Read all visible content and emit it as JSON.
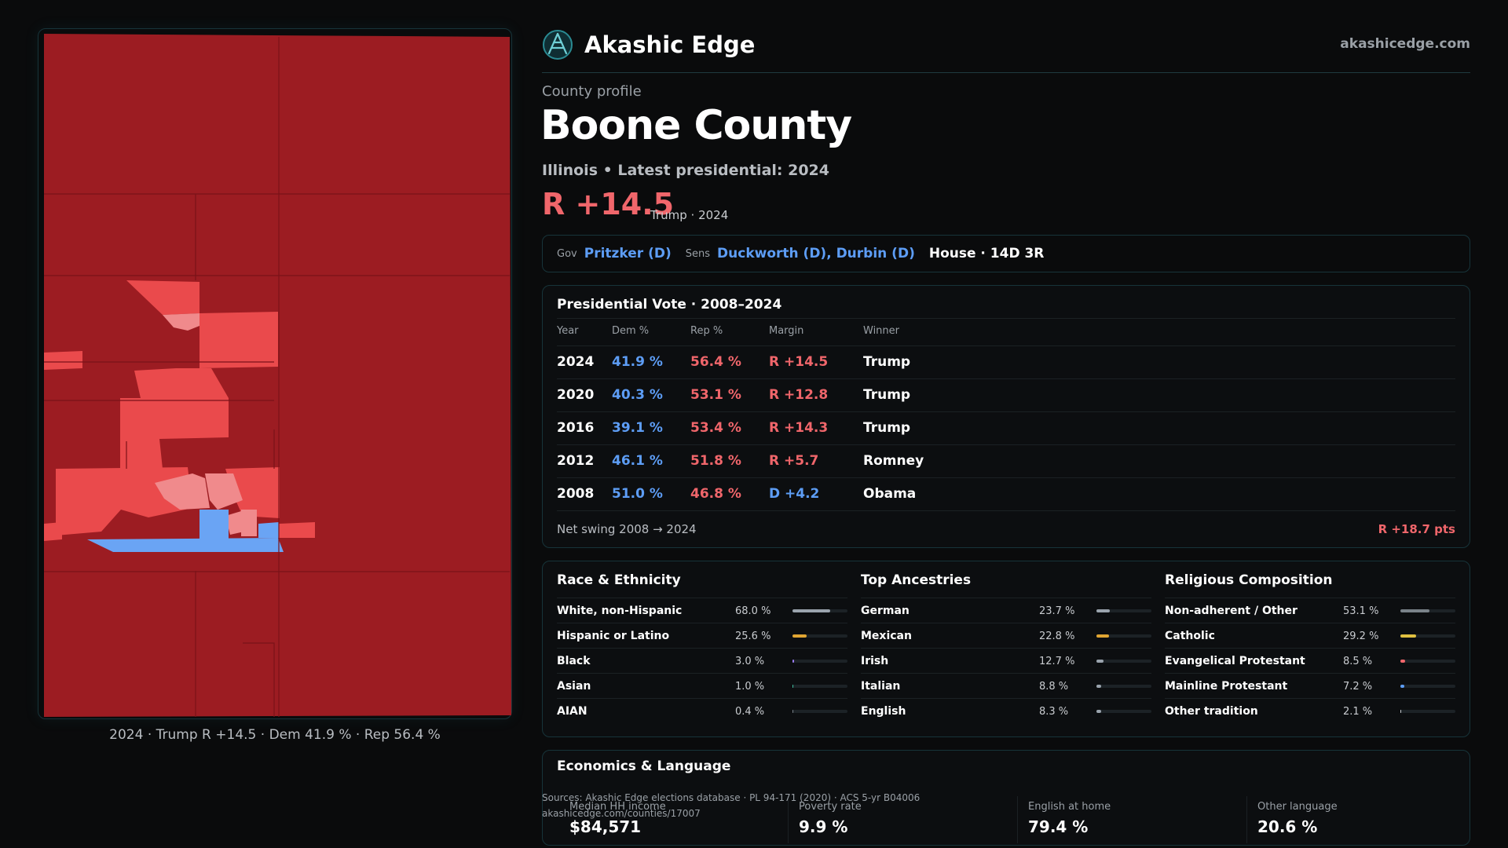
{
  "brand": {
    "name": "Akashic Edge",
    "url": "akashicedge.com",
    "logo_icon": "akashic-edge-logo-icon"
  },
  "profile": {
    "label": "County profile",
    "county": "Boone County",
    "subtitle": "Illinois • Latest presidential: 2024",
    "margin": "R +14.5",
    "margin_sub": "Trump · 2024"
  },
  "officials": {
    "gov_label": "Gov",
    "gov": "Pritzker (D)",
    "sens_label": "Sens",
    "sens": "Duckworth (D), Durbin (D)",
    "house": "House · 14D 3R"
  },
  "vote_history": {
    "title": "Presidential Vote · 2008–2024",
    "headers": {
      "year": "Year",
      "dem": "Dem %",
      "rep": "Rep %",
      "margin": "Margin",
      "winner": "Winner"
    },
    "rows": [
      {
        "year": "2024",
        "dem": "41.9 %",
        "rep": "56.4 %",
        "margin": "R +14.5",
        "winner": "Trump",
        "party": "R"
      },
      {
        "year": "2020",
        "dem": "40.3 %",
        "rep": "53.1 %",
        "margin": "R +12.8",
        "winner": "Trump",
        "party": "R"
      },
      {
        "year": "2016",
        "dem": "39.1 %",
        "rep": "53.4 %",
        "margin": "R +14.3",
        "winner": "Trump",
        "party": "R"
      },
      {
        "year": "2012",
        "dem": "46.1 %",
        "rep": "51.8 %",
        "margin": "R +5.7",
        "winner": "Romney",
        "party": "R"
      },
      {
        "year": "2008",
        "dem": "51.0 %",
        "rep": "46.8 %",
        "margin": "D +4.2",
        "winner": "Obama",
        "party": "D"
      }
    ],
    "swing_label": "Net swing 2008 → 2024",
    "swing_value": "R +18.7 pts"
  },
  "demographics": [
    {
      "title": "Race & Ethnicity",
      "items": [
        {
          "name": "White, non-Hispanic",
          "value": "68.0 %",
          "fraction": 0.68,
          "color": "#9aa3ad"
        },
        {
          "name": "Hispanic or Latino",
          "value": "25.6 %",
          "fraction": 0.256,
          "color": "#e0a532"
        },
        {
          "name": "Black",
          "value": "3.0 %",
          "fraction": 0.03,
          "color": "#9a7cf0"
        },
        {
          "name": "Asian",
          "value": "1.0 %",
          "fraction": 0.01,
          "color": "#3fc2a0"
        },
        {
          "name": "AIAN",
          "value": "0.4 %",
          "fraction": 0.004,
          "color": "#7a8289"
        }
      ]
    },
    {
      "title": "Top Ancestries",
      "items": [
        {
          "name": "German",
          "value": "23.7 %",
          "fraction": 0.237,
          "color": "#9aa3ad"
        },
        {
          "name": "Mexican",
          "value": "22.8 %",
          "fraction": 0.228,
          "color": "#e0a532"
        },
        {
          "name": "Irish",
          "value": "12.7 %",
          "fraction": 0.127,
          "color": "#9aa3ad"
        },
        {
          "name": "Italian",
          "value": "8.8 %",
          "fraction": 0.088,
          "color": "#9aa3ad"
        },
        {
          "name": "English",
          "value": "8.3 %",
          "fraction": 0.083,
          "color": "#9aa3ad"
        }
      ]
    },
    {
      "title": "Religious Composition",
      "items": [
        {
          "name": "Non-adherent / Other",
          "value": "53.1 %",
          "fraction": 0.531,
          "color": "#7a8289"
        },
        {
          "name": "Catholic",
          "value": "29.2 %",
          "fraction": 0.292,
          "color": "#e0c040"
        },
        {
          "name": "Evangelical Protestant",
          "value": "8.5 %",
          "fraction": 0.085,
          "color": "#f0666b"
        },
        {
          "name": "Mainline Protestant",
          "value": "7.2 %",
          "fraction": 0.072,
          "color": "#5d9df5"
        },
        {
          "name": "Other tradition",
          "value": "2.1 %",
          "fraction": 0.021,
          "color": "#c9ccd0"
        }
      ]
    }
  ],
  "economics": {
    "title": "Economics & Language",
    "items": [
      {
        "label": "Median HH income",
        "value": "$84,571"
      },
      {
        "label": "Poverty rate",
        "value": "9.9 %"
      },
      {
        "label": "English at home",
        "value": "79.4 %"
      },
      {
        "label": "Other language",
        "value": "20.6 %"
      }
    ]
  },
  "sources": {
    "line1": "Sources: Akashic Edge elections database · PL 94-171 (2020) · ACS 5-yr B04006",
    "line2": "akashicedge.com/counties/17007"
  },
  "map": {
    "caption": "2024 · Trump R +14.5 · Dem 41.9 % · Rep 56.4 %",
    "colors": {
      "strong_r": "#9c1c22",
      "lean_r": "#ea4a4c",
      "light_r": "#f08a8c",
      "dem": "#6aa4f4",
      "border": "#7a1218"
    }
  },
  "colors": {
    "accent_red": "#f0666b",
    "accent_blue": "#5d9df5",
    "card_border": "#17343a",
    "background": "#0a0b0c"
  }
}
